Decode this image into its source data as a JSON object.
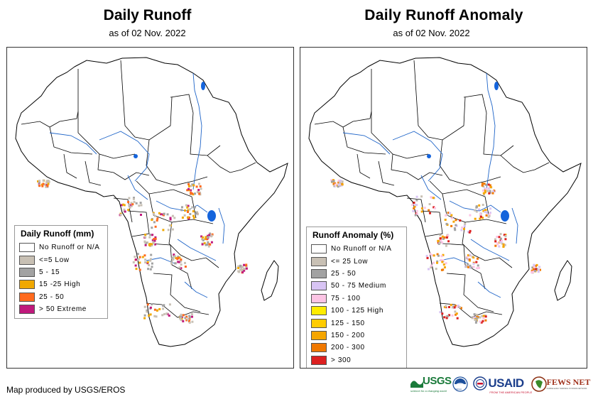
{
  "left_map": {
    "title": "Daily Runoff",
    "subtitle": "as of 02 Nov. 2022",
    "legend": {
      "title": "Daily Runoff (mm)",
      "items": [
        {
          "label": "No Runoff or N/A",
          "color": "#ffffff"
        },
        {
          "label": "<=5 Low",
          "color": "#c8c0b4"
        },
        {
          "label": "5 - 15",
          "color": "#a2a2a2"
        },
        {
          "label": "15 -25 High",
          "color": "#f0a800"
        },
        {
          "label": "25 - 50",
          "color": "#ff6a1e"
        },
        {
          "label": "> 50 Extreme",
          "color": "#c0197c"
        }
      ]
    }
  },
  "right_map": {
    "title": "Daily Runoff Anomaly",
    "subtitle": "as of 02 Nov. 2022",
    "legend": {
      "title": "Runoff Anomaly (%)",
      "items": [
        {
          "label": "No Runoff or N/A",
          "color": "#ffffff"
        },
        {
          "label": "<= 25 Low",
          "color": "#c8c0b4"
        },
        {
          "label": "25 - 50",
          "color": "#a2a2a2"
        },
        {
          "label": "50 - 75 Medium",
          "color": "#d8c4f4"
        },
        {
          "label": "75 - 100",
          "color": "#fcc4e4"
        },
        {
          "label": "100 - 125 High",
          "color": "#ffec00"
        },
        {
          "label": "125 - 150",
          "color": "#ffcc00"
        },
        {
          "label": "150 - 200",
          "color": "#f6a600"
        },
        {
          "label": "200 - 300",
          "color": "#f07800"
        },
        {
          "label": "> 300",
          "color": "#dc2020"
        }
      ]
    }
  },
  "footer": {
    "credit": "Map produced by USGS/EROS",
    "logos": {
      "usgs": "USGS",
      "usgs_tagline": "science for a changing world",
      "noaa": "NOAA",
      "usaid": "USAID",
      "usaid_tagline": "FROM THE AMERICAN PEOPLE",
      "fewsnet": "FEWS NET",
      "fewsnet_tagline": "FAMINE EARLY WARNING SYSTEMS NETWORK"
    }
  },
  "colors": {
    "rivers": "#1e64c8",
    "lakes": "#1464dc",
    "borders": "#000000"
  }
}
